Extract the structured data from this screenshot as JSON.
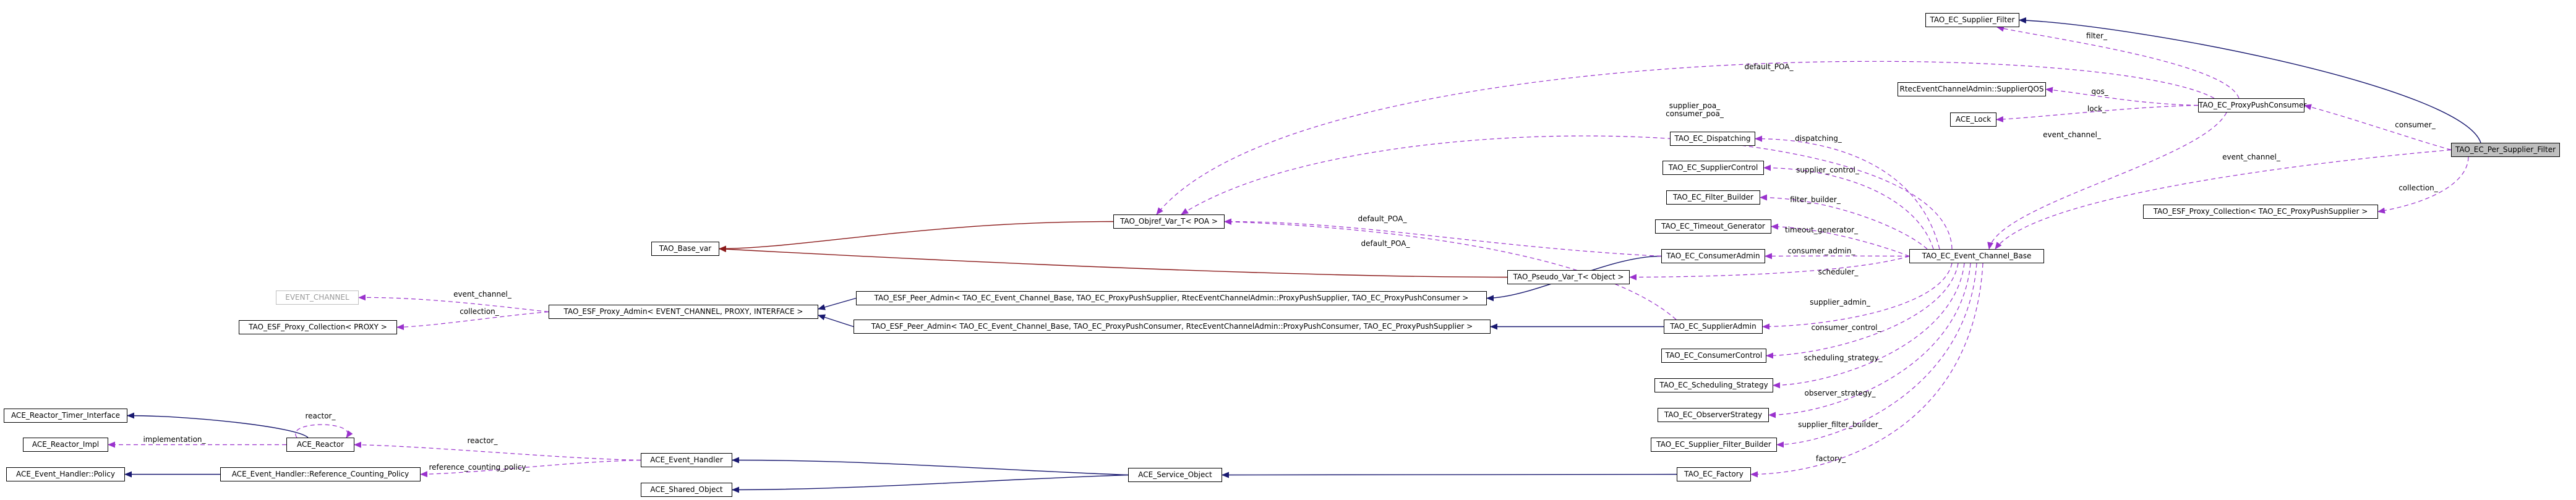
{
  "diagram": {
    "nodes": [
      {
        "id": "per_supplier_filter",
        "label": "TAO_EC_Per_Supplier_Filter",
        "focus": true
      },
      {
        "id": "supplier_filter",
        "label": "TAO_EC_Supplier_Filter"
      },
      {
        "id": "supplier_qos",
        "label": "RtecEventChannelAdmin::SupplierQOS"
      },
      {
        "id": "proxy_push_consumer",
        "label": "TAO_EC_ProxyPushConsumer"
      },
      {
        "id": "ace_lock",
        "label": "ACE_Lock"
      },
      {
        "id": "proxy_collection_pps",
        "label": "TAO_ESF_Proxy_Collection< TAO_EC_ProxyPushSupplier >"
      },
      {
        "id": "event_channel_base",
        "label": "TAO_EC_Event_Channel_Base"
      },
      {
        "id": "dispatching",
        "label": "TAO_EC_Dispatching"
      },
      {
        "id": "supplier_control",
        "label": "TAO_EC_SupplierControl"
      },
      {
        "id": "filter_builder",
        "label": "TAO_EC_Filter_Builder"
      },
      {
        "id": "timeout_generator",
        "label": "TAO_EC_Timeout_Generator"
      },
      {
        "id": "consumer_admin",
        "label": "TAO_EC_ConsumerAdmin"
      },
      {
        "id": "supplier_admin",
        "label": "TAO_EC_SupplierAdmin"
      },
      {
        "id": "consumer_control",
        "label": "TAO_EC_ConsumerControl"
      },
      {
        "id": "scheduling_strategy",
        "label": "TAO_EC_Scheduling_Strategy"
      },
      {
        "id": "observer_strategy",
        "label": "TAO_EC_ObserverStrategy"
      },
      {
        "id": "supplier_filter_builder",
        "label": "TAO_EC_Supplier_Filter_Builder"
      },
      {
        "id": "ec_factory",
        "label": "TAO_EC_Factory"
      },
      {
        "id": "objref_var",
        "label": "TAO_Objref_Var_T< POA >"
      },
      {
        "id": "pseudo_var",
        "label": "TAO_Pseudo_Var_T< Object >"
      },
      {
        "id": "base_var",
        "label": "TAO_Base_var"
      },
      {
        "id": "peer_admin_supplier",
        "label": "TAO_ESF_Peer_Admin< TAO_EC_Event_Channel_Base, TAO_EC_ProxyPushSupplier, RtecEventChannelAdmin::ProxyPushSupplier, TAO_EC_ProxyPushConsumer >"
      },
      {
        "id": "peer_admin_consumer",
        "label": "TAO_ESF_Peer_Admin< TAO_EC_Event_Channel_Base, TAO_EC_ProxyPushConsumer, RtecEventChannelAdmin::ProxyPushConsumer, TAO_EC_ProxyPushSupplier >"
      },
      {
        "id": "proxy_admin",
        "label": "TAO_ESF_Proxy_Admin< EVENT_CHANNEL, PROXY, INTERFACE >"
      },
      {
        "id": "event_channel_tpl",
        "label": "EVENT_CHANNEL",
        "plain": true
      },
      {
        "id": "proxy_collection_tpl",
        "label": "TAO_ESF_Proxy_Collection< PROXY >"
      },
      {
        "id": "ace_reactor_timer_interface",
        "label": "ACE_Reactor_Timer_Interface"
      },
      {
        "id": "ace_reactor_impl",
        "label": "ACE_Reactor_Impl"
      },
      {
        "id": "ace_reactor",
        "label": "ACE_Reactor"
      },
      {
        "id": "ace_eh_policy",
        "label": "ACE_Event_Handler::Policy"
      },
      {
        "id": "ace_eh_rcp",
        "label": "ACE_Event_Handler::Reference_Counting_Policy"
      },
      {
        "id": "ace_event_handler",
        "label": "ACE_Event_Handler"
      },
      {
        "id": "ace_shared_object",
        "label": "ACE_Shared_Object"
      },
      {
        "id": "ace_service_object",
        "label": "ACE_Service_Object"
      }
    ],
    "edge_labels": {
      "filter": "filter_",
      "default_poa": "default_POA_",
      "qos": "qos_",
      "lock": "lock_",
      "consumer": "consumer_",
      "event_channel": "event_channel_",
      "collection": "collection_",
      "supplier_consumer_poa": "supplier_poa_\nconsumer_poa_",
      "dispatching": "dispatching_",
      "supplier_control": "supplier_control_",
      "filter_builder": "filter_builder_",
      "timeout_generator": "timeout_generator_",
      "consumer_admin": "consumer_admin_",
      "scheduler": "scheduler_",
      "supplier_admin": "supplier_admin_",
      "consumer_control": "consumer_control_",
      "scheduling_strategy": "scheduling_strategy_",
      "observer_strategy": "observer_strategy_",
      "supplier_filter_builder": "supplier_filter_builder_",
      "factory": "factory_",
      "reactor": "reactor_",
      "implementation": "implementation_",
      "reference_counting_policy": "reference_counting_policy_"
    },
    "colors": {
      "inheritance_public": "#191970",
      "inheritance_template": "#8b1a1a",
      "usage": "#9a32cd",
      "focus_fill": "#bfbfbf"
    }
  }
}
